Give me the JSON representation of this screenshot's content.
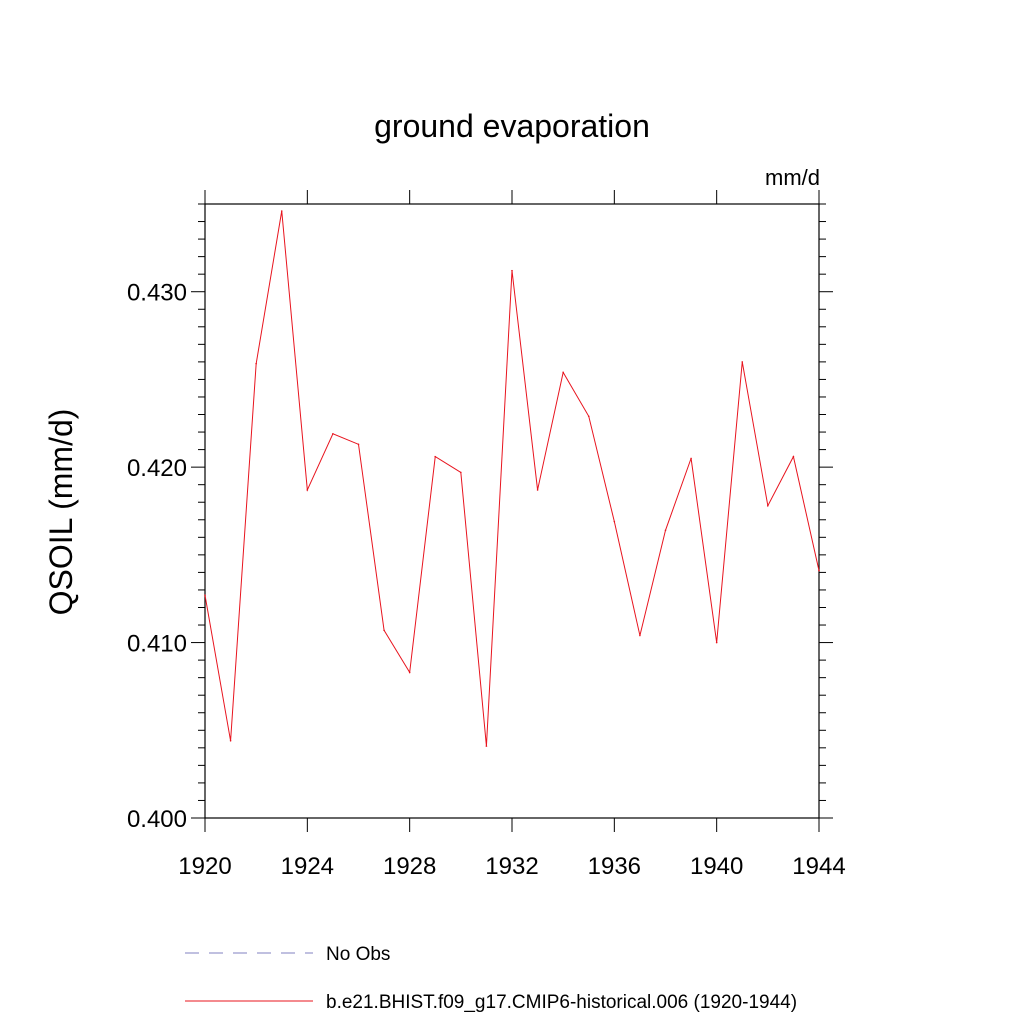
{
  "chart_data": {
    "type": "line",
    "title": "ground evaporation",
    "units": "mm/d",
    "xlabel": "",
    "ylabel": "QSOIL  (mm/d)",
    "xlim": [
      1920,
      1944
    ],
    "ylim": [
      0.4,
      0.435
    ],
    "x_ticks": [
      1920,
      1924,
      1928,
      1932,
      1936,
      1940,
      1944
    ],
    "y_ticks": [
      "0.400",
      "0.410",
      "0.420",
      "0.430"
    ],
    "y_tick_values": [
      0.4,
      0.41,
      0.42,
      0.43
    ],
    "grid": false,
    "legend_position": "bottom",
    "series": [
      {
        "name": "No Obs",
        "color": "#8080c0",
        "style": "dashed",
        "x": [],
        "values": []
      },
      {
        "name": "b.e21.BHIST.f09_g17.CMIP6-historical.006 (1920-1944)",
        "color": "#e8141e",
        "style": "solid",
        "x": [
          1920,
          1921,
          1922,
          1923,
          1924,
          1925,
          1926,
          1927,
          1928,
          1929,
          1930,
          1931,
          1932,
          1933,
          1934,
          1935,
          1936,
          1937,
          1938,
          1939,
          1940,
          1941,
          1942,
          1943,
          1944
        ],
        "values": [
          0.4127,
          0.4044,
          0.4259,
          0.4346,
          0.4187,
          0.4219,
          0.4213,
          0.4107,
          0.4083,
          0.4206,
          0.4197,
          0.4041,
          0.4312,
          0.4187,
          0.4254,
          0.4229,
          0.4169,
          0.4104,
          0.4164,
          0.4205,
          0.41,
          0.426,
          0.4178,
          0.4206,
          0.4141
        ]
      }
    ]
  }
}
